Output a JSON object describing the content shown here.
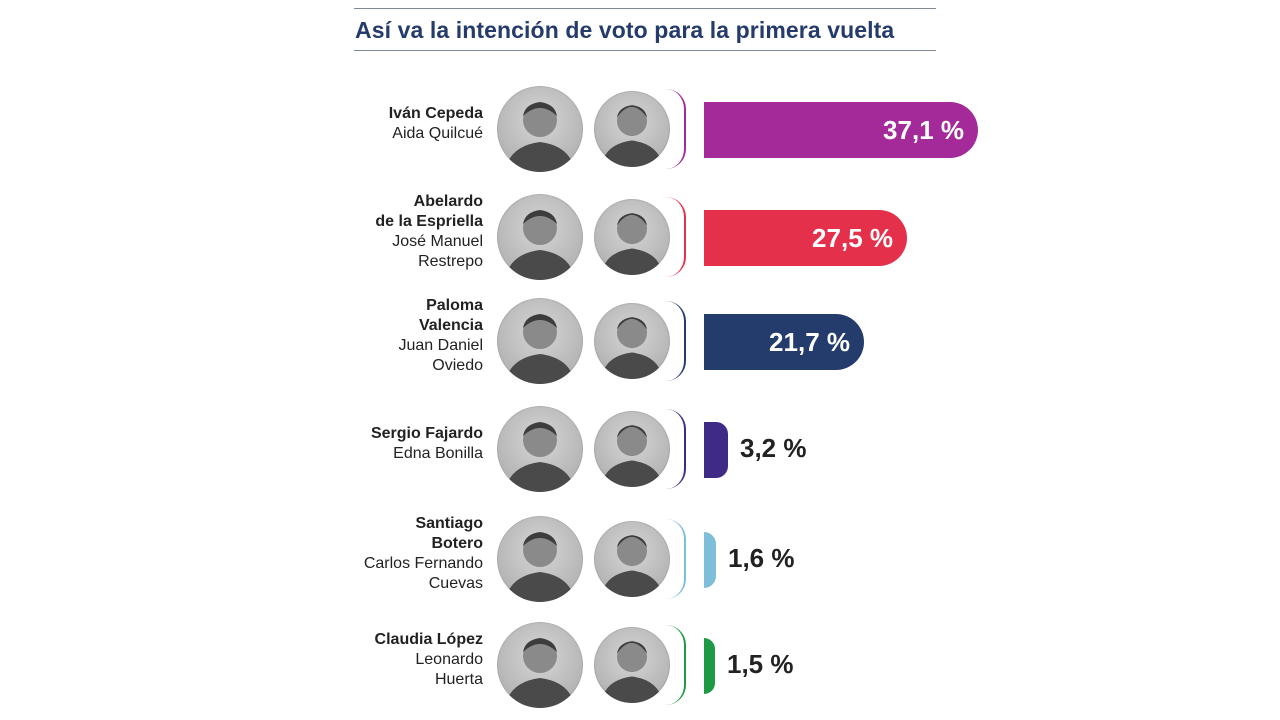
{
  "header": {
    "title": "Así va la intención de voto para la primera vuelta"
  },
  "chart_data": {
    "type": "bar",
    "title": "Así va la intención de voto para la primera vuelta",
    "categories": [
      "Iván Cepeda / Aida Quilcué",
      "Abelardo de la Espriella / José Manuel Restrepo",
      "Paloma Valencia / Juan Daniel Oviedo",
      "Sergio Fajardo / Edna Bonilla",
      "Santiago Botero / Carlos Fernando Cuevas",
      "Claudia López / Leonardo Huerta"
    ],
    "values": [
      37.1,
      27.5,
      21.7,
      3.2,
      1.6,
      1.5
    ],
    "unit": "%",
    "xlabel": "",
    "ylabel": "",
    "xlim": [
      0,
      37.1
    ],
    "grid": false,
    "rows": [
      {
        "pres_lines": [
          "Iván Cepeda"
        ],
        "vice_lines": [
          "Aida Quilcué"
        ],
        "value": 37.1,
        "label": "37,1 %",
        "color": "#a32a98"
      },
      {
        "pres_lines": [
          "Abelardo",
          "de la Espriella"
        ],
        "vice_lines": [
          "José Manuel",
          "Restrepo"
        ],
        "value": 27.5,
        "label": "27,5 %",
        "color": "#e5304b"
      },
      {
        "pres_lines": [
          "Paloma",
          "Valencia"
        ],
        "vice_lines": [
          "Juan Daniel",
          "Oviedo"
        ],
        "value": 21.7,
        "label": "21,7 %",
        "color": "#243c6c"
      },
      {
        "pres_lines": [
          "Sergio Fajardo"
        ],
        "vice_lines": [
          "Edna Bonilla"
        ],
        "value": 3.2,
        "label": "3,2 %",
        "color": "#3f2a86"
      },
      {
        "pres_lines": [
          "Santiago",
          "Botero"
        ],
        "vice_lines": [
          "Carlos Fernando",
          "Cuevas"
        ],
        "value": 1.6,
        "label": "1,6 %",
        "color": "#7dbfd9"
      },
      {
        "pres_lines": [
          "Claudia López"
        ],
        "vice_lines": [
          "Leonardo",
          "Huerta"
        ],
        "value": 1.5,
        "label": "1,5 %",
        "color": "#1f9a44"
      }
    ]
  }
}
